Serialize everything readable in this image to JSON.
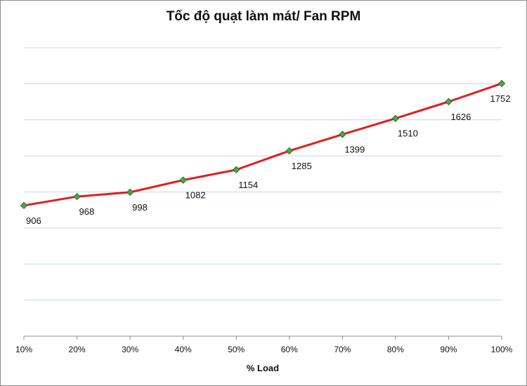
{
  "chart_data": {
    "type": "line",
    "title": "Tốc độ quạt làm mát/ Fan RPM",
    "xlabel": "% Load",
    "ylabel": "",
    "categories": [
      "10%",
      "20%",
      "30%",
      "40%",
      "50%",
      "60%",
      "70%",
      "80%",
      "90%",
      "100%"
    ],
    "series": [
      {
        "values": [
          906,
          968,
          998,
          1082,
          1154,
          1285,
          1399,
          1510,
          1626,
          1752
        ]
      }
    ],
    "ylim": [
      0,
      2000
    ],
    "grid": true,
    "legend": "none",
    "colors": {
      "line": "#e01e1e",
      "marker": "#4aa84a",
      "marker_edge": "#2b6b2b",
      "grid": "#c5d7ea",
      "axis": "#8c8c8c"
    }
  }
}
